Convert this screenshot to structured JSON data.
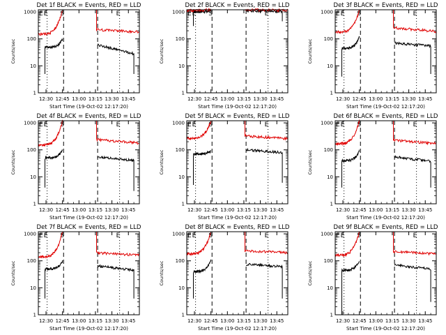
{
  "colors": {
    "events": "#000000",
    "lld": "#e00000",
    "axis": "#000000",
    "background": "#ffffff"
  },
  "chart_data": [
    {
      "type": "line",
      "title": "Det 1f BLACK = Events, RED = LLD",
      "xlabel": "Start Time (19-Oct-02 12:17:20)",
      "ylabel": "Counts/sec",
      "xlim": [
        "12:23",
        "13:55"
      ],
      "ylim": [
        1,
        1200
      ],
      "yscale": "log",
      "x_ticks": [
        "12:30",
        "12:45",
        "13:00",
        "13:15",
        "13:30",
        "13:45"
      ],
      "y_ticks": [
        "1",
        "10",
        "100",
        "1000"
      ],
      "grid": false,
      "markers": [
        {
          "label": "E",
          "time": "12:31",
          "style": "dotted"
        },
        {
          "label": "S",
          "time": "12:46",
          "style": "dashed"
        },
        {
          "label": "",
          "time": "13:17",
          "style": "dashed"
        },
        {
          "label": "E",
          "time": "13:37",
          "style": "dotted"
        }
      ],
      "series": [
        {
          "name": "Events",
          "color": "black",
          "segments": [
            {
              "start": "12:29",
              "end": "12:45",
              "level": 50,
              "rise": 95,
              "spike": 5
            },
            {
              "start": "13:17",
              "end": "13:50",
              "level": 60,
              "decay": 28,
              "drop": 5
            }
          ]
        },
        {
          "name": "LLD",
          "color": "red",
          "segments": [
            {
              "start": "12:23",
              "end": "12:45",
              "level": 150,
              "rise": 1200
            },
            {
              "start": "13:16",
              "end": "13:55",
              "level": 220,
              "decay": 180
            }
          ]
        }
      ]
    },
    {
      "type": "line",
      "title": "Det 2f BLACK = Events, RED = LLD",
      "xlabel": "Start Time (19-Oct-02 12:17:20)",
      "ylabel": "Counts/sec",
      "xlim": [
        "12:23",
        "13:55"
      ],
      "ylim": [
        1,
        1200
      ],
      "yscale": "log",
      "x_ticks": [
        "12:30",
        "12:45",
        "13:00",
        "13:15",
        "13:30",
        "13:45"
      ],
      "y_ticks": [
        "1",
        "10",
        "100",
        "1000"
      ],
      "grid": false,
      "markers": [
        {
          "label": "E",
          "time": "12:31",
          "style": "dotted"
        },
        {
          "label": "S",
          "time": "12:46",
          "style": "dashed"
        },
        {
          "label": "",
          "time": "13:17",
          "style": "dashed"
        },
        {
          "label": "E",
          "time": "13:37",
          "style": "dotted"
        }
      ],
      "series": [
        {
          "name": "Events",
          "color": "black",
          "segments": [
            {
              "start": "12:29",
              "end": "12:45",
              "level": 1000,
              "rise": 1150,
              "spike": 300
            },
            {
              "start": "13:17",
              "end": "13:50",
              "level": 1100,
              "decay": 1050,
              "drop": 450
            }
          ]
        },
        {
          "name": "LLD",
          "color": "red",
          "segments": [
            {
              "start": "12:23",
              "end": "12:45",
              "level": 1150,
              "rise": 1200
            },
            {
              "start": "13:16",
              "end": "13:55",
              "level": 1200,
              "decay": 1150
            }
          ]
        }
      ]
    },
    {
      "type": "line",
      "title": "Det 3f BLACK = Events, RED = LLD",
      "xlabel": "Start Time (19-Oct-02 12:17:20)",
      "ylabel": "Counts/sec",
      "xlim": [
        "12:23",
        "13:55"
      ],
      "ylim": [
        1,
        1200
      ],
      "yscale": "log",
      "x_ticks": [
        "12:30",
        "12:45",
        "13:00",
        "13:15",
        "13:30",
        "13:45"
      ],
      "y_ticks": [
        "1",
        "10",
        "100",
        "1000"
      ],
      "grid": false,
      "markers": [
        {
          "label": "E",
          "time": "12:31",
          "style": "dotted"
        },
        {
          "label": "S",
          "time": "12:46",
          "style": "dashed"
        },
        {
          "label": "",
          "time": "13:17",
          "style": "dashed"
        },
        {
          "label": "E",
          "time": "13:37",
          "style": "dotted"
        }
      ],
      "series": [
        {
          "name": "Events",
          "color": "black",
          "segments": [
            {
              "start": "12:29",
              "end": "12:45",
              "level": 45,
              "rise": 120,
              "spike": 4
            },
            {
              "start": "13:17",
              "end": "13:50",
              "level": 70,
              "decay": 55,
              "drop": 5
            }
          ]
        },
        {
          "name": "LLD",
          "color": "red",
          "segments": [
            {
              "start": "12:23",
              "end": "12:45",
              "level": 180,
              "rise": 1200
            },
            {
              "start": "13:16",
              "end": "13:55",
              "level": 260,
              "decay": 190
            }
          ]
        }
      ]
    },
    {
      "type": "line",
      "title": "Det 4f BLACK = Events, RED = LLD",
      "xlabel": "Start Time (19-Oct-02 12:17:20)",
      "ylabel": "Counts/sec",
      "xlim": [
        "12:23",
        "13:55"
      ],
      "ylim": [
        1,
        1200
      ],
      "yscale": "log",
      "x_ticks": [
        "12:30",
        "12:45",
        "13:00",
        "13:15",
        "13:30",
        "13:45"
      ],
      "y_ticks": [
        "1",
        "10",
        "100",
        "1000"
      ],
      "grid": false,
      "markers": [
        {
          "label": "E",
          "time": "12:31",
          "style": "dotted"
        },
        {
          "label": "S",
          "time": "12:46",
          "style": "dashed"
        },
        {
          "label": "",
          "time": "13:17",
          "style": "dashed"
        },
        {
          "label": "E",
          "time": "13:37",
          "style": "dotted"
        }
      ],
      "series": [
        {
          "name": "Events",
          "color": "black",
          "segments": [
            {
              "start": "12:29",
              "end": "12:45",
              "level": 50,
              "rise": 100,
              "spike": 4
            },
            {
              "start": "13:17",
              "end": "13:50",
              "level": 55,
              "decay": 40,
              "drop": 3
            }
          ]
        },
        {
          "name": "LLD",
          "color": "red",
          "segments": [
            {
              "start": "12:23",
              "end": "12:45",
              "level": 150,
              "rise": 1200
            },
            {
              "start": "13:16",
              "end": "13:55",
              "level": 240,
              "decay": 180
            }
          ]
        }
      ]
    },
    {
      "type": "line",
      "title": "Det 5f BLACK = Events, RED = LLD",
      "xlabel": "Start Time (19-Oct-02 12:17:20)",
      "ylabel": "Counts/sec",
      "xlim": [
        "12:23",
        "13:55"
      ],
      "ylim": [
        1,
        1200
      ],
      "yscale": "log",
      "x_ticks": [
        "12:30",
        "12:45",
        "13:00",
        "13:15",
        "13:30",
        "13:45"
      ],
      "y_ticks": [
        "1",
        "10",
        "100",
        "1000"
      ],
      "grid": false,
      "markers": [
        {
          "label": "E",
          "time": "12:31",
          "style": "dotted"
        },
        {
          "label": "S",
          "time": "12:46",
          "style": "dashed"
        },
        {
          "label": "",
          "time": "13:17",
          "style": "dashed"
        },
        {
          "label": "E",
          "time": "13:37",
          "style": "dotted"
        }
      ],
      "series": [
        {
          "name": "Events",
          "color": "black",
          "segments": [
            {
              "start": "12:29",
              "end": "12:45",
              "level": 70,
              "rise": 90,
              "spike": 5
            },
            {
              "start": "13:17",
              "end": "13:50",
              "level": 100,
              "decay": 80,
              "drop": 6
            }
          ]
        },
        {
          "name": "LLD",
          "color": "red",
          "segments": [
            {
              "start": "12:23",
              "end": "12:45",
              "level": 260,
              "rise": 1200
            },
            {
              "start": "13:16",
              "end": "13:55",
              "level": 330,
              "decay": 260
            }
          ]
        }
      ]
    },
    {
      "type": "line",
      "title": "Det 6f BLACK = Events, RED = LLD",
      "xlabel": "Start Time (19-Oct-02 12:17:20)",
      "ylabel": "Counts/sec",
      "xlim": [
        "12:23",
        "13:55"
      ],
      "ylim": [
        1,
        1200
      ],
      "yscale": "log",
      "x_ticks": [
        "12:30",
        "12:45",
        "13:00",
        "13:15",
        "13:30",
        "13:45"
      ],
      "y_ticks": [
        "1",
        "10",
        "100",
        "1000"
      ],
      "grid": false,
      "markers": [
        {
          "label": "E",
          "time": "12:31",
          "style": "dotted"
        },
        {
          "label": "S",
          "time": "12:46",
          "style": "dashed"
        },
        {
          "label": "",
          "time": "13:17",
          "style": "dashed"
        },
        {
          "label": "E",
          "time": "13:37",
          "style": "dotted"
        }
      ],
      "series": [
        {
          "name": "Events",
          "color": "black",
          "segments": [
            {
              "start": "12:29",
              "end": "12:45",
              "level": 40,
              "rise": 90,
              "spike": 4
            },
            {
              "start": "13:17",
              "end": "13:50",
              "level": 55,
              "decay": 38,
              "drop": 4
            }
          ]
        },
        {
          "name": "LLD",
          "color": "red",
          "segments": [
            {
              "start": "12:23",
              "end": "12:45",
              "level": 170,
              "rise": 1200
            },
            {
              "start": "13:16",
              "end": "13:55",
              "level": 230,
              "decay": 170
            }
          ]
        }
      ]
    },
    {
      "type": "line",
      "title": "Det 7f BLACK = Events, RED = LLD",
      "xlabel": "Start Time (19-Oct-02 12:17:20)",
      "ylabel": "Counts/sec",
      "xlim": [
        "12:23",
        "13:55"
      ],
      "ylim": [
        1,
        1200
      ],
      "yscale": "log",
      "x_ticks": [
        "12:30",
        "12:45",
        "13:00",
        "13:15",
        "13:30",
        "13:45"
      ],
      "y_ticks": [
        "1",
        "10",
        "100",
        "1000"
      ],
      "grid": false,
      "markers": [
        {
          "label": "E",
          "time": "12:31",
          "style": "dotted"
        },
        {
          "label": "S",
          "time": "12:46",
          "style": "dashed"
        },
        {
          "label": "",
          "time": "13:17",
          "style": "dashed"
        },
        {
          "label": "E",
          "time": "13:37",
          "style": "dotted"
        }
      ],
      "series": [
        {
          "name": "Events",
          "color": "black",
          "segments": [
            {
              "start": "12:29",
              "end": "12:45",
              "level": 50,
              "rise": 95,
              "spike": 4
            },
            {
              "start": "13:17",
              "end": "13:50",
              "level": 65,
              "decay": 45,
              "drop": 4
            }
          ]
        },
        {
          "name": "LLD",
          "color": "red",
          "segments": [
            {
              "start": "12:23",
              "end": "12:45",
              "level": 140,
              "rise": 1200
            },
            {
              "start": "13:16",
              "end": "13:55",
              "level": 200,
              "decay": 160
            }
          ]
        }
      ]
    },
    {
      "type": "line",
      "title": "Det 8f BLACK = Events, RED = LLD",
      "xlabel": "Start Time (19-Oct-02 12:17:20)",
      "ylabel": "Counts/sec",
      "xlim": [
        "12:23",
        "13:55"
      ],
      "ylim": [
        1,
        1200
      ],
      "yscale": "log",
      "x_ticks": [
        "12:30",
        "12:45",
        "13:00",
        "13:15",
        "13:30",
        "13:45"
      ],
      "y_ticks": [
        "1",
        "10",
        "100",
        "1000"
      ],
      "grid": false,
      "markers": [
        {
          "label": "E",
          "time": "12:31",
          "style": "dotted"
        },
        {
          "label": "S",
          "time": "12:46",
          "style": "dashed"
        },
        {
          "label": "",
          "time": "13:17",
          "style": "dashed"
        },
        {
          "label": "E",
          "time": "13:37",
          "style": "dotted"
        }
      ],
      "series": [
        {
          "name": "Events",
          "color": "black",
          "segments": [
            {
              "start": "12:29",
              "end": "12:45",
              "level": 40,
              "rise": 110,
              "spike": 4
            },
            {
              "start": "13:17",
              "end": "13:50",
              "level": 75,
              "decay": 60,
              "drop": 4
            }
          ]
        },
        {
          "name": "LLD",
          "color": "red",
          "segments": [
            {
              "start": "12:23",
              "end": "12:45",
              "level": 180,
              "rise": 1200
            },
            {
              "start": "13:16",
              "end": "13:55",
              "level": 240,
              "decay": 200
            }
          ]
        }
      ]
    },
    {
      "type": "line",
      "title": "Det 9f BLACK = Events, RED = LLD",
      "xlabel": "Start Time (19-Oct-02 12:17:20)",
      "ylabel": "Counts/sec",
      "xlim": [
        "12:23",
        "13:55"
      ],
      "ylim": [
        1,
        1200
      ],
      "yscale": "log",
      "x_ticks": [
        "12:30",
        "12:45",
        "13:00",
        "13:15",
        "13:30",
        "13:45"
      ],
      "y_ticks": [
        "1",
        "10",
        "100",
        "1000"
      ],
      "grid": false,
      "markers": [
        {
          "label": "E",
          "time": "12:31",
          "style": "dotted"
        },
        {
          "label": "S",
          "time": "12:46",
          "style": "dashed"
        },
        {
          "label": "",
          "time": "13:17",
          "style": "dashed"
        },
        {
          "label": "E",
          "time": "13:37",
          "style": "dotted"
        }
      ],
      "series": [
        {
          "name": "Events",
          "color": "black",
          "segments": [
            {
              "start": "12:29",
              "end": "12:45",
              "level": 45,
              "rise": 100,
              "spike": 1
            },
            {
              "start": "13:17",
              "end": "13:50",
              "level": 70,
              "decay": 50,
              "drop": 3
            }
          ]
        },
        {
          "name": "LLD",
          "color": "red",
          "segments": [
            {
              "start": "12:23",
              "end": "12:45",
              "level": 160,
              "rise": 1200
            },
            {
              "start": "13:16",
              "end": "13:55",
              "level": 220,
              "decay": 180
            }
          ]
        }
      ]
    }
  ]
}
